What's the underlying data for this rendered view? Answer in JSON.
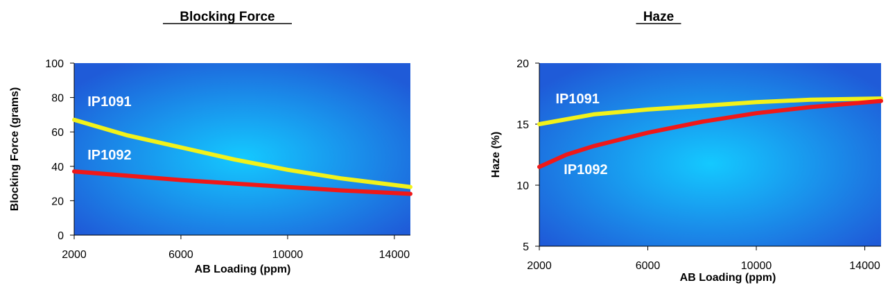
{
  "colors": {
    "plot_bg_center": "#14c9ff",
    "plot_bg_edge": "#1f5bd8",
    "series_1": "#f2f21a",
    "series_2": "#f01818",
    "label_text": "#ffffff"
  },
  "chart_data": [
    {
      "type": "line",
      "title": "Blocking Force",
      "xlabel": "AB Loading (ppm)",
      "ylabel": "Blocking Force (grams)",
      "xlim": [
        2000,
        14600
      ],
      "ylim": [
        0,
        100
      ],
      "xticks": [
        "2000",
        "6000",
        "10000",
        "14000"
      ],
      "xtick_values": [
        2000,
        6000,
        10000,
        14000
      ],
      "yticks": [
        "0",
        "20",
        "40",
        "60",
        "80",
        "100"
      ],
      "ytick_values": [
        0,
        20,
        40,
        60,
        80,
        100
      ],
      "grid": false,
      "series": [
        {
          "name": "IP1091",
          "color_key": "series_1",
          "x": [
            2000,
            4000,
            6000,
            8000,
            10000,
            12000,
            14600
          ],
          "y": [
            67,
            58,
            51,
            44,
            38,
            33,
            28
          ]
        },
        {
          "name": "IP1092",
          "color_key": "series_2",
          "x": [
            2000,
            4000,
            6000,
            8000,
            10000,
            12000,
            14600
          ],
          "y": [
            37,
            34.5,
            32,
            30,
            28,
            26,
            24
          ]
        }
      ],
      "annotations": [
        {
          "text": "IP1091",
          "x": 2500,
          "y": 75
        },
        {
          "text": "IP1092",
          "x": 2500,
          "y": 44
        }
      ]
    },
    {
      "type": "line",
      "title": "Haze",
      "xlabel": "AB Loading (ppm)",
      "ylabel": "Haze (%)",
      "xlim": [
        2000,
        14600
      ],
      "ylim": [
        5,
        20
      ],
      "xticks": [
        "2000",
        "6000",
        "10000",
        "14000"
      ],
      "xtick_values": [
        2000,
        6000,
        10000,
        14000
      ],
      "yticks": [
        "5",
        "10",
        "15",
        "20"
      ],
      "ytick_values": [
        5,
        10,
        15,
        20
      ],
      "grid": false,
      "series": [
        {
          "name": "IP1091",
          "color_key": "series_1",
          "x": [
            2000,
            4000,
            6000,
            8000,
            10000,
            12000,
            14600
          ],
          "y": [
            15,
            15.8,
            16.2,
            16.5,
            16.8,
            17,
            17.1
          ]
        },
        {
          "name": "IP1092",
          "color_key": "series_2",
          "x": [
            2000,
            3000,
            4000,
            6000,
            8000,
            10000,
            12000,
            14600
          ],
          "y": [
            11.5,
            12.5,
            13.2,
            14.3,
            15.2,
            15.9,
            16.4,
            16.9
          ]
        }
      ],
      "annotations": [
        {
          "text": "IP1091",
          "x": 2600,
          "y": 16.7
        },
        {
          "text": "IP1092",
          "x": 2900,
          "y": 10.9
        }
      ]
    }
  ]
}
